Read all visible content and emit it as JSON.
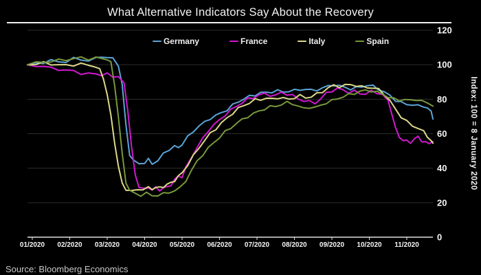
{
  "title": "What Alternative Indicators Say About the Recovery",
  "source": "Source: Bloomberg Economics",
  "colors": {
    "background": "#000000",
    "title_text": "#f2f2f2",
    "grid": "#2d2d2d",
    "axis": "#e0e0e0",
    "tick_text": "#f5f5f5",
    "legend_text": "#f0f0f0",
    "source_text": "#c9c9c9"
  },
  "chart_data": {
    "type": "line",
    "title": "What Alternative Indicators Say About the Recovery",
    "x_tick_labels": [
      "01/2020",
      "02/2020",
      "03/2020",
      "04/2020",
      "05/2020",
      "06/2020",
      "07/2020",
      "08/2020",
      "09/2020",
      "10/2020",
      "11/2020"
    ],
    "y_ticks": [
      0,
      20,
      40,
      60,
      80,
      100,
      120
    ],
    "ylim": [
      0,
      120
    ],
    "y_axis_label": "Index: 100 = 8 January 2020",
    "grid": "horizontal",
    "legend_position": "top-center",
    "x_unit_note": "x in months: 0 = 01/2020 tick, 10 = 11/2020 tick, data ends ~10.7 (late Nov 2020)",
    "series": [
      {
        "name": "Germany",
        "color": "#5aa5d8",
        "points": [
          [
            -0.13,
            100
          ],
          [
            0.1,
            100.5
          ],
          [
            0.3,
            101.5
          ],
          [
            0.5,
            102.5
          ],
          [
            0.7,
            101.5
          ],
          [
            0.9,
            102
          ],
          [
            1.1,
            103.5
          ],
          [
            1.3,
            103
          ],
          [
            1.5,
            102.5
          ],
          [
            1.7,
            103.5
          ],
          [
            1.85,
            105
          ],
          [
            2.0,
            104
          ],
          [
            2.15,
            103.5
          ],
          [
            2.3,
            100
          ],
          [
            2.4,
            88
          ],
          [
            2.5,
            65
          ],
          [
            2.6,
            48
          ],
          [
            2.7,
            44
          ],
          [
            2.85,
            43
          ],
          [
            3.0,
            43
          ],
          [
            3.1,
            45
          ],
          [
            3.2,
            43
          ],
          [
            3.35,
            44
          ],
          [
            3.5,
            48.5
          ],
          [
            3.65,
            51
          ],
          [
            3.8,
            52.5
          ],
          [
            3.9,
            52
          ],
          [
            4.0,
            54
          ],
          [
            4.15,
            58
          ],
          [
            4.3,
            61.5
          ],
          [
            4.45,
            64.5
          ],
          [
            4.6,
            66.5
          ],
          [
            4.75,
            69
          ],
          [
            4.9,
            70.5
          ],
          [
            5.05,
            72
          ],
          [
            5.2,
            74
          ],
          [
            5.35,
            76.5
          ],
          [
            5.5,
            78.5
          ],
          [
            5.65,
            80.5
          ],
          [
            5.8,
            81.5
          ],
          [
            5.95,
            82.5
          ],
          [
            6.1,
            84
          ],
          [
            6.25,
            83.5
          ],
          [
            6.4,
            84.5
          ],
          [
            6.55,
            85
          ],
          [
            6.7,
            84
          ],
          [
            6.85,
            85
          ],
          [
            7.0,
            85
          ],
          [
            7.15,
            85.5
          ],
          [
            7.3,
            86
          ],
          [
            7.45,
            85
          ],
          [
            7.6,
            85.5
          ],
          [
            7.75,
            86.5
          ],
          [
            7.9,
            87.5
          ],
          [
            8.05,
            88.5
          ],
          [
            8.2,
            87.5
          ],
          [
            8.35,
            87
          ],
          [
            8.5,
            86
          ],
          [
            8.65,
            86.5
          ],
          [
            8.8,
            87.5
          ],
          [
            8.95,
            88
          ],
          [
            9.1,
            87.5
          ],
          [
            9.25,
            86
          ],
          [
            9.4,
            84
          ],
          [
            9.55,
            82
          ],
          [
            9.7,
            79.5
          ],
          [
            9.85,
            78
          ],
          [
            10.0,
            77
          ],
          [
            10.15,
            77
          ],
          [
            10.3,
            76
          ],
          [
            10.45,
            76
          ],
          [
            10.55,
            75
          ],
          [
            10.65,
            72.5
          ],
          [
            10.7,
            68.5
          ]
        ]
      },
      {
        "name": "France",
        "color": "#d118d1",
        "points": [
          [
            -0.13,
            100
          ],
          [
            0.1,
            99.5
          ],
          [
            0.3,
            99
          ],
          [
            0.5,
            98
          ],
          [
            0.7,
            97.5
          ],
          [
            0.9,
            96.5
          ],
          [
            1.1,
            96.5
          ],
          [
            1.3,
            95
          ],
          [
            1.5,
            94.5
          ],
          [
            1.7,
            95
          ],
          [
            1.85,
            94
          ],
          [
            2.0,
            94.5
          ],
          [
            2.15,
            93.5
          ],
          [
            2.3,
            93
          ],
          [
            2.45,
            89
          ],
          [
            2.55,
            74
          ],
          [
            2.65,
            52
          ],
          [
            2.75,
            36
          ],
          [
            2.85,
            29.5
          ],
          [
            3.0,
            27.5
          ],
          [
            3.1,
            29
          ],
          [
            3.2,
            27.5
          ],
          [
            3.3,
            28.5
          ],
          [
            3.4,
            27.5
          ],
          [
            3.5,
            28.5
          ],
          [
            3.6,
            29
          ],
          [
            3.7,
            30.5
          ],
          [
            3.8,
            33
          ],
          [
            3.9,
            35.5
          ],
          [
            4.0,
            35
          ],
          [
            4.1,
            40
          ],
          [
            4.25,
            46.5
          ],
          [
            4.4,
            52
          ],
          [
            4.55,
            57
          ],
          [
            4.7,
            62
          ],
          [
            4.85,
            65
          ],
          [
            5.0,
            68
          ],
          [
            5.15,
            71
          ],
          [
            5.3,
            73.5
          ],
          [
            5.45,
            76
          ],
          [
            5.6,
            78
          ],
          [
            5.75,
            80
          ],
          [
            5.9,
            81
          ],
          [
            6.05,
            82.5
          ],
          [
            6.2,
            83
          ],
          [
            6.35,
            82.5
          ],
          [
            6.5,
            82
          ],
          [
            6.65,
            84
          ],
          [
            6.8,
            83
          ],
          [
            6.95,
            82
          ],
          [
            7.1,
            80.5
          ],
          [
            7.25,
            79
          ],
          [
            7.4,
            78.5
          ],
          [
            7.55,
            78
          ],
          [
            7.7,
            80
          ],
          [
            7.85,
            83.5
          ],
          [
            8.0,
            85
          ],
          [
            8.15,
            86
          ],
          [
            8.3,
            85.5
          ],
          [
            8.45,
            84
          ],
          [
            8.6,
            84.5
          ],
          [
            8.75,
            83.5
          ],
          [
            8.9,
            83
          ],
          [
            9.05,
            84.5
          ],
          [
            9.2,
            84
          ],
          [
            9.35,
            82.5
          ],
          [
            9.5,
            79
          ],
          [
            9.6,
            72
          ],
          [
            9.7,
            63
          ],
          [
            9.8,
            58
          ],
          [
            9.9,
            56.5
          ],
          [
            10.0,
            55.5
          ],
          [
            10.1,
            55
          ],
          [
            10.2,
            57
          ],
          [
            10.3,
            58
          ],
          [
            10.4,
            56
          ],
          [
            10.5,
            55
          ],
          [
            10.6,
            54
          ],
          [
            10.7,
            55.5
          ]
        ]
      },
      {
        "name": "Italy",
        "color": "#ded98a",
        "points": [
          [
            -0.13,
            100
          ],
          [
            0.1,
            100.5
          ],
          [
            0.3,
            101
          ],
          [
            0.5,
            100.5
          ],
          [
            0.7,
            100
          ],
          [
            0.9,
            99.5
          ],
          [
            1.1,
            100
          ],
          [
            1.3,
            100.5
          ],
          [
            1.5,
            99.5
          ],
          [
            1.65,
            99.5
          ],
          [
            1.8,
            97
          ],
          [
            1.9,
            92
          ],
          [
            2.0,
            83
          ],
          [
            2.1,
            70
          ],
          [
            2.2,
            55
          ],
          [
            2.3,
            41
          ],
          [
            2.4,
            31
          ],
          [
            2.5,
            28
          ],
          [
            2.65,
            26.5
          ],
          [
            2.8,
            27.5
          ],
          [
            2.95,
            28
          ],
          [
            3.1,
            28.5
          ],
          [
            3.2,
            28
          ],
          [
            3.3,
            29
          ],
          [
            3.4,
            28.5
          ],
          [
            3.5,
            29.5
          ],
          [
            3.6,
            30.5
          ],
          [
            3.7,
            31.5
          ],
          [
            3.8,
            33
          ],
          [
            3.9,
            35
          ],
          [
            4.0,
            37.5
          ],
          [
            4.15,
            42
          ],
          [
            4.3,
            47
          ],
          [
            4.45,
            52
          ],
          [
            4.6,
            56
          ],
          [
            4.75,
            60
          ],
          [
            4.9,
            63
          ],
          [
            5.05,
            66
          ],
          [
            5.2,
            69
          ],
          [
            5.35,
            72
          ],
          [
            5.5,
            74.5
          ],
          [
            5.65,
            76.5
          ],
          [
            5.8,
            78
          ],
          [
            5.95,
            79.5
          ],
          [
            6.1,
            80
          ],
          [
            6.25,
            80.5
          ],
          [
            6.4,
            80
          ],
          [
            6.55,
            81
          ],
          [
            6.7,
            80.5
          ],
          [
            6.85,
            80
          ],
          [
            7.0,
            81
          ],
          [
            7.15,
            82
          ],
          [
            7.3,
            81
          ],
          [
            7.45,
            81.5
          ],
          [
            7.6,
            83
          ],
          [
            7.75,
            84.5
          ],
          [
            7.9,
            86.5
          ],
          [
            8.05,
            88
          ],
          [
            8.2,
            87.5
          ],
          [
            8.35,
            88
          ],
          [
            8.5,
            88.5
          ],
          [
            8.65,
            88
          ],
          [
            8.8,
            87
          ],
          [
            8.95,
            87
          ],
          [
            9.1,
            86.5
          ],
          [
            9.25,
            85.5
          ],
          [
            9.4,
            83
          ],
          [
            9.55,
            79
          ],
          [
            9.7,
            74
          ],
          [
            9.85,
            70
          ],
          [
            10.0,
            67
          ],
          [
            10.15,
            64.5
          ],
          [
            10.3,
            63.5
          ],
          [
            10.45,
            61
          ],
          [
            10.55,
            58.5
          ],
          [
            10.65,
            56
          ],
          [
            10.7,
            54.5
          ]
        ]
      },
      {
        "name": "Spain",
        "color": "#78993c",
        "points": [
          [
            -0.13,
            100
          ],
          [
            0.1,
            101
          ],
          [
            0.3,
            101.5
          ],
          [
            0.5,
            102
          ],
          [
            0.7,
            102.5
          ],
          [
            0.9,
            103
          ],
          [
            1.1,
            103.5
          ],
          [
            1.3,
            104
          ],
          [
            1.5,
            103.5
          ],
          [
            1.7,
            104
          ],
          [
            1.85,
            103.5
          ],
          [
            2.0,
            103.5
          ],
          [
            2.1,
            101
          ],
          [
            2.2,
            88
          ],
          [
            2.3,
            70
          ],
          [
            2.4,
            48
          ],
          [
            2.5,
            32
          ],
          [
            2.6,
            27
          ],
          [
            2.75,
            25
          ],
          [
            2.9,
            24.5
          ],
          [
            3.05,
            25.5
          ],
          [
            3.2,
            24
          ],
          [
            3.35,
            24.5
          ],
          [
            3.5,
            25
          ],
          [
            3.65,
            26
          ],
          [
            3.8,
            27
          ],
          [
            3.95,
            28.5
          ],
          [
            4.1,
            33
          ],
          [
            4.25,
            38.5
          ],
          [
            4.4,
            44
          ],
          [
            4.55,
            48
          ],
          [
            4.7,
            51.5
          ],
          [
            4.85,
            55
          ],
          [
            5.0,
            58
          ],
          [
            5.15,
            61
          ],
          [
            5.3,
            63.5
          ],
          [
            5.45,
            66
          ],
          [
            5.6,
            68
          ],
          [
            5.75,
            70
          ],
          [
            5.9,
            71.5
          ],
          [
            6.05,
            73
          ],
          [
            6.2,
            74.5
          ],
          [
            6.35,
            75.5
          ],
          [
            6.5,
            76
          ],
          [
            6.65,
            77
          ],
          [
            6.8,
            78
          ],
          [
            6.95,
            77.5
          ],
          [
            7.1,
            76
          ],
          [
            7.25,
            74.5
          ],
          [
            7.4,
            75.5
          ],
          [
            7.55,
            75
          ],
          [
            7.7,
            76.5
          ],
          [
            7.85,
            78
          ],
          [
            8.0,
            79
          ],
          [
            8.15,
            80.5
          ],
          [
            8.3,
            81.5
          ],
          [
            8.45,
            82.5
          ],
          [
            8.6,
            83.5
          ],
          [
            8.75,
            84.5
          ],
          [
            8.9,
            85
          ],
          [
            9.05,
            85
          ],
          [
            9.2,
            84
          ],
          [
            9.35,
            83
          ],
          [
            9.5,
            81.5
          ],
          [
            9.65,
            80
          ],
          [
            9.8,
            79.5
          ],
          [
            9.95,
            80
          ],
          [
            10.1,
            79
          ],
          [
            10.25,
            80
          ],
          [
            10.4,
            79
          ],
          [
            10.55,
            77.5
          ],
          [
            10.7,
            76
          ]
        ]
      }
    ]
  }
}
